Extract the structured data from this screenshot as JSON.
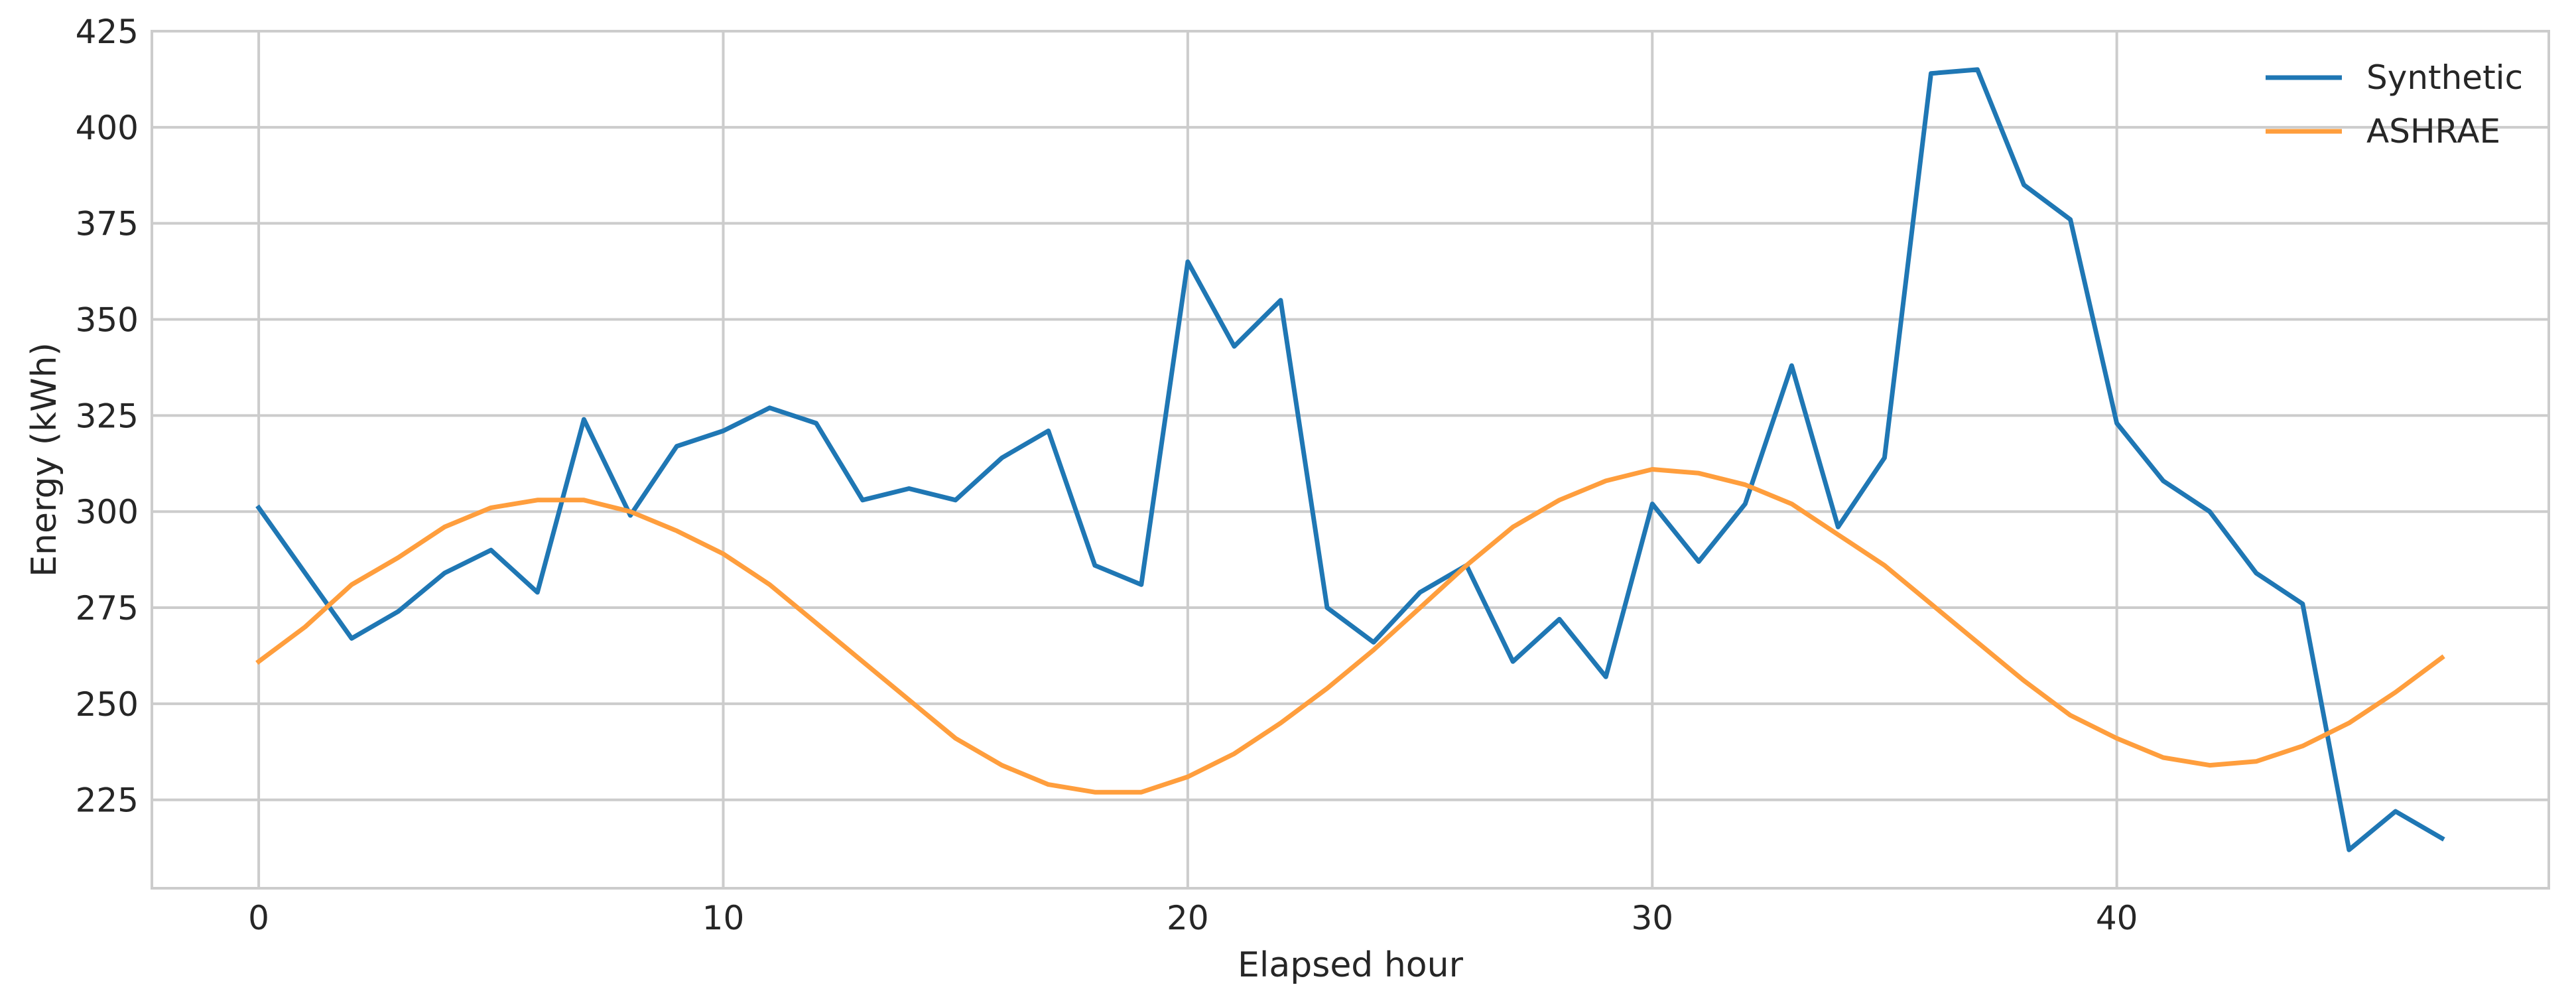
{
  "chart_data": {
    "type": "line",
    "xlabel": "Elapsed hour",
    "ylabel": "Energy (kWh)",
    "xlim": [
      -2.3,
      49.3
    ],
    "ylim": [
      202,
      425
    ],
    "xticks": [
      0,
      10,
      20,
      30,
      40
    ],
    "yticks": [
      225,
      250,
      275,
      300,
      325,
      350,
      375,
      400,
      425
    ],
    "grid": true,
    "legend": "top-right",
    "x": [
      0,
      1,
      2,
      3,
      4,
      5,
      6,
      7,
      8,
      9,
      10,
      11,
      12,
      13,
      14,
      15,
      16,
      17,
      18,
      19,
      20,
      21,
      22,
      23,
      24,
      25,
      26,
      27,
      28,
      29,
      30,
      31,
      32,
      33,
      34,
      35,
      36,
      37,
      38,
      39,
      40,
      41,
      42,
      43,
      44,
      45,
      46,
      47
    ],
    "series": [
      {
        "name": "Synthetic",
        "color": "#1f77b4",
        "values": [
          301,
          284,
          267,
          274,
          284,
          290,
          279,
          324,
          299,
          317,
          321,
          327,
          323,
          303,
          306,
          303,
          314,
          321,
          286,
          281,
          365,
          343,
          355,
          275,
          266,
          279,
          286,
          261,
          272,
          257,
          302,
          287,
          302,
          338,
          296,
          314,
          414,
          415,
          385,
          376,
          323,
          308,
          300,
          284,
          276,
          212,
          222,
          215
        ]
      },
      {
        "name": "ASHRAE",
        "color": "#ff9e3d",
        "values": [
          261,
          270,
          281,
          288,
          296,
          301,
          303,
          303,
          300,
          295,
          289,
          281,
          271,
          261,
          251,
          241,
          234,
          229,
          227,
          227,
          231,
          237,
          245,
          254,
          264,
          275,
          286,
          296,
          303,
          308,
          311,
          310,
          307,
          302,
          294,
          286,
          276,
          266,
          256,
          247,
          241,
          236,
          234,
          235,
          239,
          245,
          253,
          262
        ]
      }
    ]
  }
}
